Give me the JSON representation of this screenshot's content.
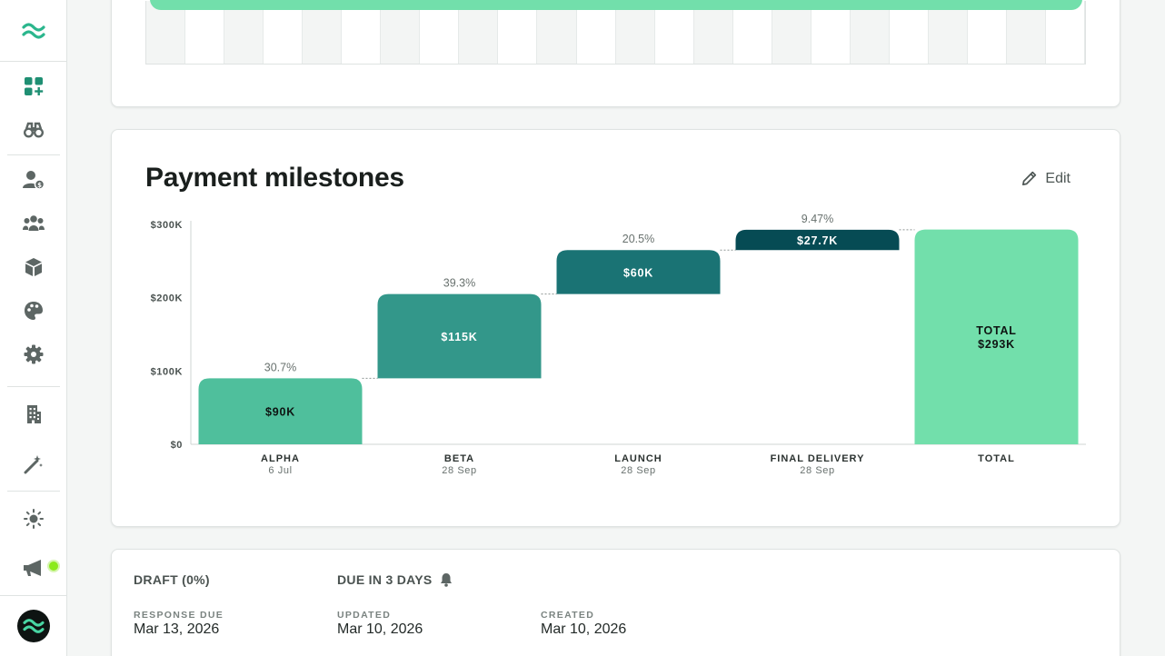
{
  "sidebar": {
    "logo": "wave-logo",
    "items": [
      {
        "name": "sidebar-item-dashboard",
        "icon": "grid-plus-icon"
      },
      {
        "name": "sidebar-item-explore",
        "icon": "binoculars-icon"
      },
      {
        "name": "sidebar-item-clients",
        "icon": "user-dollar-icon"
      },
      {
        "name": "sidebar-item-team",
        "icon": "people-icon"
      },
      {
        "name": "sidebar-item-products",
        "icon": "cube-icon"
      },
      {
        "name": "sidebar-item-branding",
        "icon": "palette-icon"
      },
      {
        "name": "sidebar-item-settings",
        "icon": "gear-icon"
      },
      {
        "name": "sidebar-item-company",
        "icon": "building-icon"
      },
      {
        "name": "sidebar-item-magic",
        "icon": "magic-wand-icon"
      },
      {
        "name": "sidebar-item-theme",
        "icon": "sun-icon"
      },
      {
        "name": "sidebar-item-announcements",
        "icon": "megaphone-icon"
      }
    ],
    "colors": {
      "accent": "#1f8f73",
      "icon": "#5d6664",
      "notif": "#8bea1c"
    }
  },
  "payment": {
    "title": "Payment milestones",
    "edit_label": "Edit"
  },
  "chart_data": {
    "type": "bar",
    "subtype": "waterfall",
    "categories": [
      "ALPHA",
      "BETA",
      "LAUNCH",
      "FINAL DELIVERY",
      "TOTAL"
    ],
    "dates": [
      "6 Jul",
      "28 Sep",
      "28 Sep",
      "28 Sep",
      ""
    ],
    "values": [
      90,
      115,
      60,
      27.7,
      293
    ],
    "value_labels": [
      "$90K",
      "$115K",
      "$60K",
      "$27.7K",
      "$293K"
    ],
    "percent_labels": [
      "30.7%",
      "39.3%",
      "20.5%",
      "9.47%",
      ""
    ],
    "total_label": "TOTAL",
    "ylim": [
      0,
      300
    ],
    "y_ticks": [
      0,
      100,
      200,
      300
    ],
    "y_tick_labels": [
      "$0",
      "$100K",
      "$200K",
      "$300K"
    ],
    "colors": [
      "#4fbf9c",
      "#33978a",
      "#1a7374",
      "#064b54",
      "#72dfab"
    ],
    "label_colors": [
      "#0e1412",
      "#ffffff",
      "#ffffff",
      "#ffffff",
      "#0e1412"
    ]
  },
  "status": {
    "draft_label": "DRAFT (0%)",
    "due_label": "DUE IN 3 DAYS",
    "response_due_label": "RESPONSE DUE",
    "response_due_value": "Mar 13, 2026",
    "updated_label": "UPDATED",
    "updated_value": "Mar 10, 2026",
    "created_label": "CREATED",
    "created_value": "Mar 10, 2026"
  }
}
